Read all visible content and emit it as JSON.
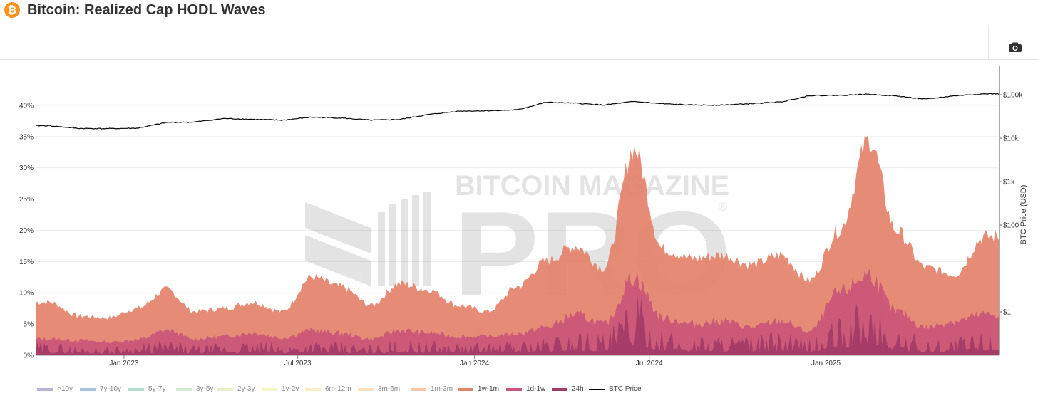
{
  "header": {
    "title": "Bitcoin: Realized Cap HODL Waves",
    "logo_glyph": "₿",
    "logo_icon": "bitcoin-logo-icon"
  },
  "toolbar": {
    "camera_icon": "camera-icon"
  },
  "watermark": {
    "line1": "BITCOIN MAGAZINE",
    "line2": "PRO",
    "mark": "®"
  },
  "chart_data": {
    "type": "area",
    "title": "",
    "xlabel": "",
    "ylabel": "",
    "y2label": "BTC Price (USD)",
    "ylim": [
      0,
      45
    ],
    "y_ticks": [
      "0%",
      "5%",
      "10%",
      "15%",
      "20%",
      "25%",
      "30%",
      "35%",
      "40%"
    ],
    "y2_scale": "log",
    "y2_ticks": [
      "$1",
      "$100",
      "$1k",
      "$10k",
      "$100k"
    ],
    "x_ticks": [
      "Jan 2023",
      "Jul 2023",
      "Jan 2024",
      "Jul 2024",
      "Jan 2025"
    ],
    "x_range": [
      "2022-10-01",
      "2025-06-30"
    ],
    "grid": true,
    "legend_position": "bottom",
    "x": [
      "2022-10",
      "2022-11",
      "2022-12",
      "2023-01",
      "2023-02",
      "2023-03",
      "2023-04",
      "2023-05",
      "2023-06",
      "2023-07",
      "2023-08",
      "2023-09",
      "2023-10",
      "2023-11",
      "2023-12",
      "2024-01",
      "2024-02",
      "2024-03",
      "2024-04",
      "2024-05",
      "2024-06",
      "2024-07",
      "2024-08",
      "2024-09",
      "2024-10",
      "2024-11",
      "2024-12",
      "2025-01",
      "2025-02",
      "2025-03",
      "2025-04",
      "2025-05",
      "2025-06"
    ],
    "series": [
      {
        "name": "1w-1m",
        "color": "#e4826a",
        "type": "area",
        "values": [
          8.5,
          6.3,
          6.0,
          7.5,
          10.5,
          7.0,
          7.5,
          8.5,
          7.0,
          12.5,
          11.0,
          8.0,
          11.5,
          10.5,
          8.0,
          7.0,
          11.0,
          15.0,
          17.5,
          14.0,
          33.0,
          17.0,
          15.5,
          16.0,
          14.5,
          16.0,
          12.0,
          20.0,
          34.5,
          20.0,
          14.0,
          13.0,
          19.0
        ]
      },
      {
        "name": "1d-1w",
        "color": "#c95577",
        "type": "area",
        "values": [
          2.6,
          2.4,
          2.1,
          2.5,
          4.0,
          2.6,
          3.0,
          3.6,
          2.8,
          4.0,
          3.5,
          2.6,
          4.0,
          3.6,
          3.0,
          3.0,
          3.5,
          4.5,
          6.5,
          5.0,
          12.5,
          6.0,
          5.0,
          5.5,
          4.5,
          5.5,
          3.8,
          10.0,
          13.0,
          7.0,
          4.5,
          5.5,
          6.5
        ]
      },
      {
        "name": "24h",
        "color": "#a23b67",
        "type": "area",
        "values": [
          1.0,
          0.8,
          0.7,
          0.9,
          1.2,
          0.8,
          0.9,
          1.1,
          0.9,
          1.2,
          1.0,
          0.8,
          1.2,
          1.1,
          1.0,
          1.0,
          1.2,
          1.5,
          2.0,
          1.8,
          4.5,
          2.0,
          1.6,
          1.7,
          1.5,
          1.8,
          1.3,
          3.0,
          4.5,
          2.2,
          1.4,
          1.5,
          2.0
        ]
      },
      {
        "name": "BTC Price",
        "color": "#000000",
        "type": "line",
        "axis": "right",
        "values": [
          19400,
          16800,
          16600,
          17000,
          23100,
          23500,
          28400,
          27200,
          26000,
          30500,
          29200,
          26000,
          27000,
          35300,
          42000,
          42800,
          45000,
          67000,
          64000,
          58000,
          70000,
          62000,
          58000,
          58000,
          62500,
          68000,
          96000,
          97000,
          103000,
          94000,
          79000,
          95000,
          105000
        ]
      }
    ],
    "legend": [
      {
        "name": ">10y",
        "color": "#b9b1d6",
        "type": "area",
        "active": false
      },
      {
        "name": "7y-10y",
        "color": "#a6c3de",
        "type": "area",
        "active": false
      },
      {
        "name": "5y-7y",
        "color": "#b5ddd1",
        "type": "area",
        "active": false
      },
      {
        "name": "3y-5y",
        "color": "#cfe8cf",
        "type": "area",
        "active": false
      },
      {
        "name": "2y-3y",
        "color": "#e7f1c6",
        "type": "area",
        "active": false
      },
      {
        "name": "1y-2y",
        "color": "#f6f5c8",
        "type": "area",
        "active": false
      },
      {
        "name": "6m-12m",
        "color": "#fbeec4",
        "type": "area",
        "active": false
      },
      {
        "name": "3m-6m",
        "color": "#fbe1bd",
        "type": "area",
        "active": false
      },
      {
        "name": "1m-3m",
        "color": "#f6c6a6",
        "type": "area",
        "active": false
      },
      {
        "name": "1w-1m",
        "color": "#e4826a",
        "type": "area",
        "active": true
      },
      {
        "name": "1d-1w",
        "color": "#c95577",
        "type": "area",
        "active": true
      },
      {
        "name": "24h",
        "color": "#a23b67",
        "type": "area",
        "active": true
      },
      {
        "name": "BTC Price",
        "color": "#000000",
        "type": "line",
        "active": true
      }
    ]
  }
}
